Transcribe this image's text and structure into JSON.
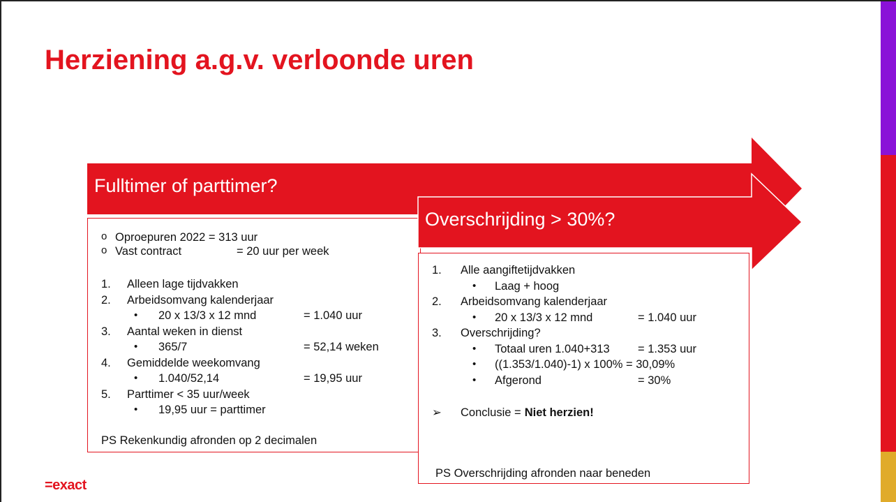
{
  "title": "Herziening a.g.v. verloonde uren",
  "logo": "=exact",
  "panels": [
    {
      "heading": "Fulltimer of parttimer?",
      "notes": [
        {
          "text": "Oproepuren 2022 = 313 uur"
        },
        {
          "text": "Vast contract",
          "value": "= 20 uur per week"
        }
      ],
      "steps": [
        {
          "marker": "1.",
          "text": "Alleen lage tijdvakken",
          "subitems": []
        },
        {
          "marker": "2.",
          "text": "Arbeidsomvang kalenderjaar",
          "subitems": [
            {
              "text": "20 x 13/3 x 12 mnd",
              "value": "= 1.040 uur"
            }
          ]
        },
        {
          "marker": "3.",
          "text": "Aantal weken in dienst",
          "subitems": [
            {
              "text": "365/7",
              "value": "= 52,14 weken"
            }
          ]
        },
        {
          "marker": "4.",
          "text": "Gemiddelde weekomvang",
          "subitems": [
            {
              "text": "1.040/52,14",
              "value": "= 19,95 uur"
            }
          ]
        },
        {
          "marker": "5.",
          "text": "Parttimer < 35 uur/week",
          "subitems": [
            {
              "text": "19,95 uur = parttimer"
            }
          ]
        }
      ],
      "footnote": "PS Rekenkundig afronden op 2 decimalen"
    },
    {
      "heading": "Overschrijding > 30%?",
      "steps": [
        {
          "marker": "1.",
          "text": "Alle aangiftetijdvakken",
          "subitems": [
            {
              "text": "Laag + hoog"
            }
          ]
        },
        {
          "marker": "2.",
          "text": "Arbeidsomvang kalenderjaar",
          "subitems": [
            {
              "text": "20 x 13/3 x 12 mnd",
              "value": "= 1.040 uur"
            }
          ]
        },
        {
          "marker": "3.",
          "text": "Overschrijding?",
          "subitems": [
            {
              "text": "Totaal uren 1.040+313",
              "value": "= 1.353 uur"
            },
            {
              "text": "((1.353/1.040)-1) x 100% = 30,09%"
            },
            {
              "text": "Afgerond",
              "value": "= 30%"
            }
          ]
        }
      ],
      "conclusion": {
        "text": "Conclusie =",
        "emphasis": "Niet herzien!"
      },
      "footnote": "PS Overschrijding afronden naar beneden"
    }
  ]
}
